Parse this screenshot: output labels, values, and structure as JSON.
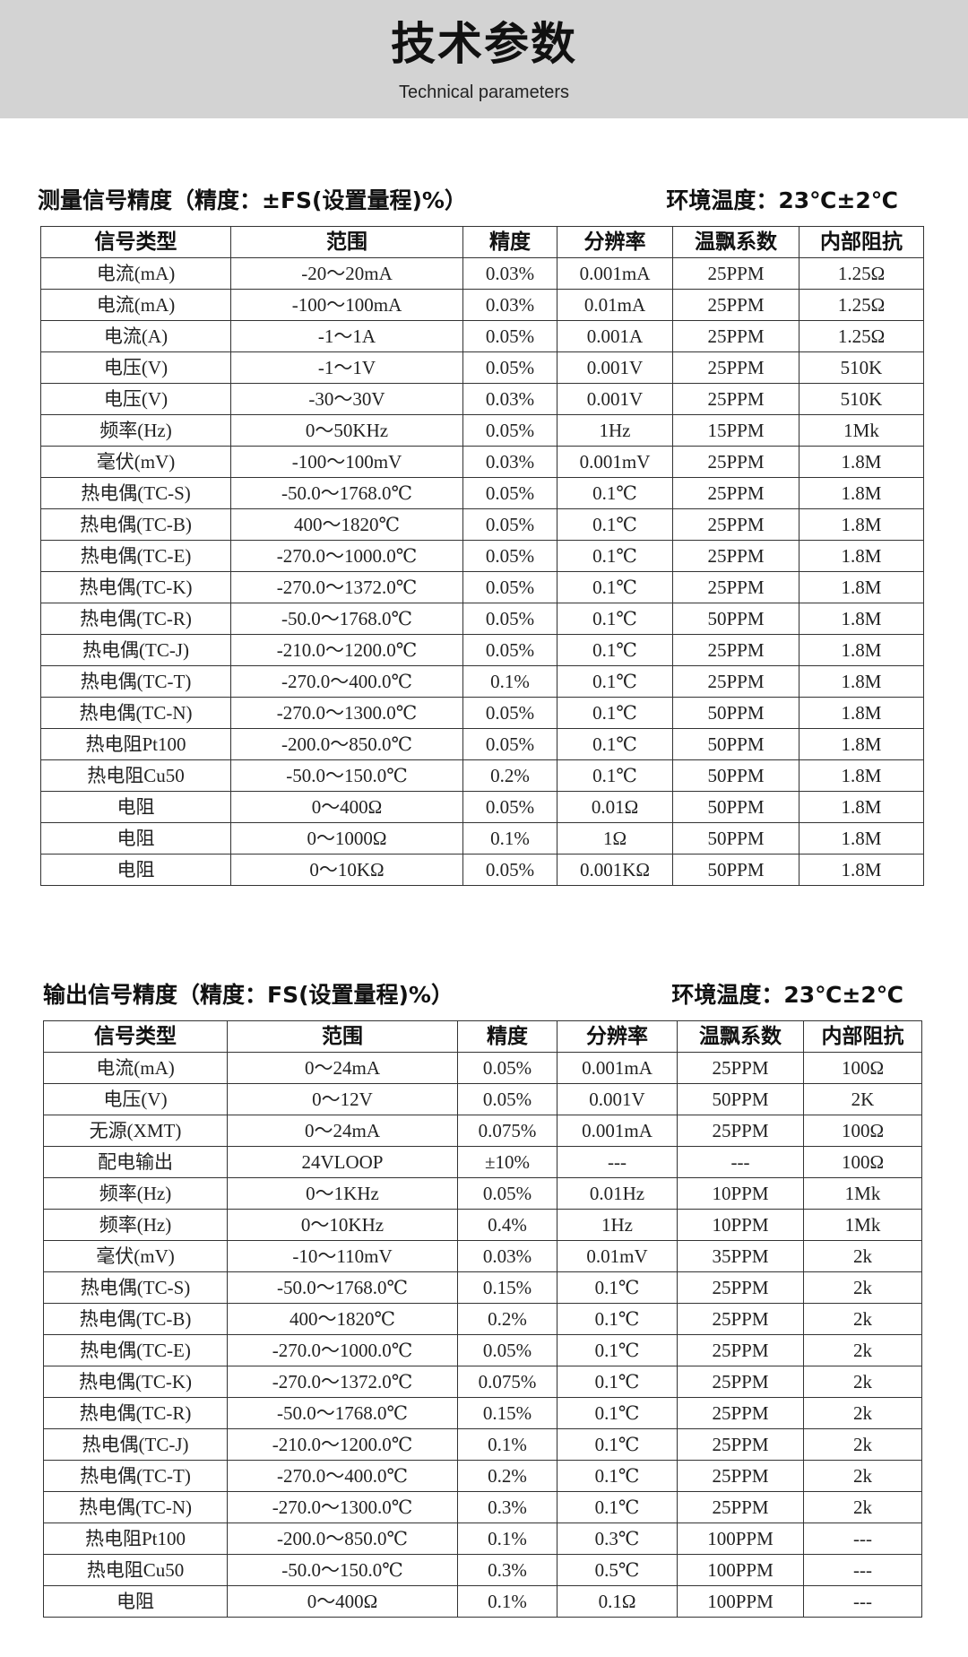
{
  "header": {
    "title": "技术参数",
    "subtitle": "Technical parameters"
  },
  "columns": [
    "信号类型",
    "范围",
    "精度",
    "分辨率",
    "温飘系数",
    "内部阻抗"
  ],
  "measure": {
    "heading": "测量信号精度（精度：±FS(设置量程)%）",
    "env": "环境温度：23℃±2℃",
    "rows": [
      [
        "电流(mA)",
        "-20～20mA",
        "0.03%",
        "0.001mA",
        "25PPM",
        "1.25Ω"
      ],
      [
        "电流(mA)",
        "-100～100mA",
        "0.03%",
        "0.01mA",
        "25PPM",
        "1.25Ω"
      ],
      [
        "电流(A)",
        "-1～1A",
        "0.05%",
        "0.001A",
        "25PPM",
        "1.25Ω"
      ],
      [
        "电压(V)",
        "-1～1V",
        "0.05%",
        "0.001V",
        "25PPM",
        "510K"
      ],
      [
        "电压(V)",
        "-30～30V",
        "0.03%",
        "0.001V",
        "25PPM",
        "510K"
      ],
      [
        "频率(Hz)",
        "0～50KHz",
        "0.05%",
        "1Hz",
        "15PPM",
        "1Mk"
      ],
      [
        "毫伏(mV)",
        "-100～100mV",
        "0.03%",
        "0.001mV",
        "25PPM",
        "1.8M"
      ],
      [
        "热电偶(TC-S)",
        "-50.0～1768.0℃",
        "0.05%",
        "0.1℃",
        "25PPM",
        "1.8M"
      ],
      [
        "热电偶(TC-B)",
        "400～1820℃",
        "0.05%",
        "0.1℃",
        "25PPM",
        "1.8M"
      ],
      [
        "热电偶(TC-E)",
        "-270.0～1000.0℃",
        "0.05%",
        "0.1℃",
        "25PPM",
        "1.8M"
      ],
      [
        "热电偶(TC-K)",
        "-270.0～1372.0℃",
        "0.05%",
        "0.1℃",
        "25PPM",
        "1.8M"
      ],
      [
        "热电偶(TC-R)",
        "-50.0～1768.0℃",
        "0.05%",
        "0.1℃",
        "50PPM",
        "1.8M"
      ],
      [
        "热电偶(TC-J)",
        "-210.0～1200.0℃",
        "0.05%",
        "0.1℃",
        "25PPM",
        "1.8M"
      ],
      [
        "热电偶(TC-T)",
        "-270.0～400.0℃",
        "0.1%",
        "0.1℃",
        "25PPM",
        "1.8M"
      ],
      [
        "热电偶(TC-N)",
        "-270.0～1300.0℃",
        "0.05%",
        "0.1℃",
        "50PPM",
        "1.8M"
      ],
      [
        "热电阻Pt100",
        "-200.0～850.0℃",
        "0.05%",
        "0.1℃",
        "50PPM",
        "1.8M"
      ],
      [
        "热电阻Cu50",
        "-50.0～150.0℃",
        "0.2%",
        "0.1℃",
        "50PPM",
        "1.8M"
      ],
      [
        "电阻",
        "0～400Ω",
        "0.05%",
        "0.01Ω",
        "50PPM",
        "1.8M"
      ],
      [
        "电阻",
        "0～1000Ω",
        "0.1%",
        "1Ω",
        "50PPM",
        "1.8M"
      ],
      [
        "电阻",
        "0～10KΩ",
        "0.05%",
        "0.001KΩ",
        "50PPM",
        "1.8M"
      ]
    ]
  },
  "output": {
    "heading": "输出信号精度（精度：FS(设置量程)%）",
    "env": "环境温度：23℃±2℃",
    "rows": [
      [
        "电流(mA)",
        "0～24mA",
        "0.05%",
        "0.001mA",
        "25PPM",
        "100Ω"
      ],
      [
        "电压(V)",
        "0～12V",
        "0.05%",
        "0.001V",
        "50PPM",
        "2K"
      ],
      [
        "无源(XMT)",
        "0～24mA",
        "0.075%",
        "0.001mA",
        "25PPM",
        "100Ω"
      ],
      [
        "配电输出",
        "24VLOOP",
        "±10%",
        "---",
        "---",
        "100Ω"
      ],
      [
        "频率(Hz)",
        "0～1KHz",
        "0.05%",
        "0.01Hz",
        "10PPM",
        "1Mk"
      ],
      [
        "频率(Hz)",
        "0～10KHz",
        "0.4%",
        "1Hz",
        "10PPM",
        "1Mk"
      ],
      [
        "毫伏(mV)",
        "-10～110mV",
        "0.03%",
        "0.01mV",
        "35PPM",
        "2k"
      ],
      [
        "热电偶(TC-S)",
        "-50.0～1768.0℃",
        "0.15%",
        "0.1℃",
        "25PPM",
        "2k"
      ],
      [
        "热电偶(TC-B)",
        "400～1820℃",
        "0.2%",
        "0.1℃",
        "25PPM",
        "2k"
      ],
      [
        "热电偶(TC-E)",
        "-270.0～1000.0℃",
        "0.05%",
        "0.1℃",
        "25PPM",
        "2k"
      ],
      [
        "热电偶(TC-K)",
        "-270.0～1372.0℃",
        "0.075%",
        "0.1℃",
        "25PPM",
        "2k"
      ],
      [
        "热电偶(TC-R)",
        "-50.0～1768.0℃",
        "0.15%",
        "0.1℃",
        "25PPM",
        "2k"
      ],
      [
        "热电偶(TC-J)",
        "-210.0～1200.0℃",
        "0.1%",
        "0.1℃",
        "25PPM",
        "2k"
      ],
      [
        "热电偶(TC-T)",
        "-270.0～400.0℃",
        "0.2%",
        "0.1℃",
        "25PPM",
        "2k"
      ],
      [
        "热电偶(TC-N)",
        "-270.0～1300.0℃",
        "0.3%",
        "0.1℃",
        "25PPM",
        "2k"
      ],
      [
        "热电阻Pt100",
        "-200.0～850.0℃",
        "0.1%",
        "0.3℃",
        "100PPM",
        "---"
      ],
      [
        "热电阻Cu50",
        "-50.0～150.0℃",
        "0.3%",
        "0.5℃",
        "100PPM",
        "---"
      ],
      [
        "电阻",
        "0～400Ω",
        "0.1%",
        "0.1Ω",
        "100PPM",
        "---"
      ]
    ]
  }
}
